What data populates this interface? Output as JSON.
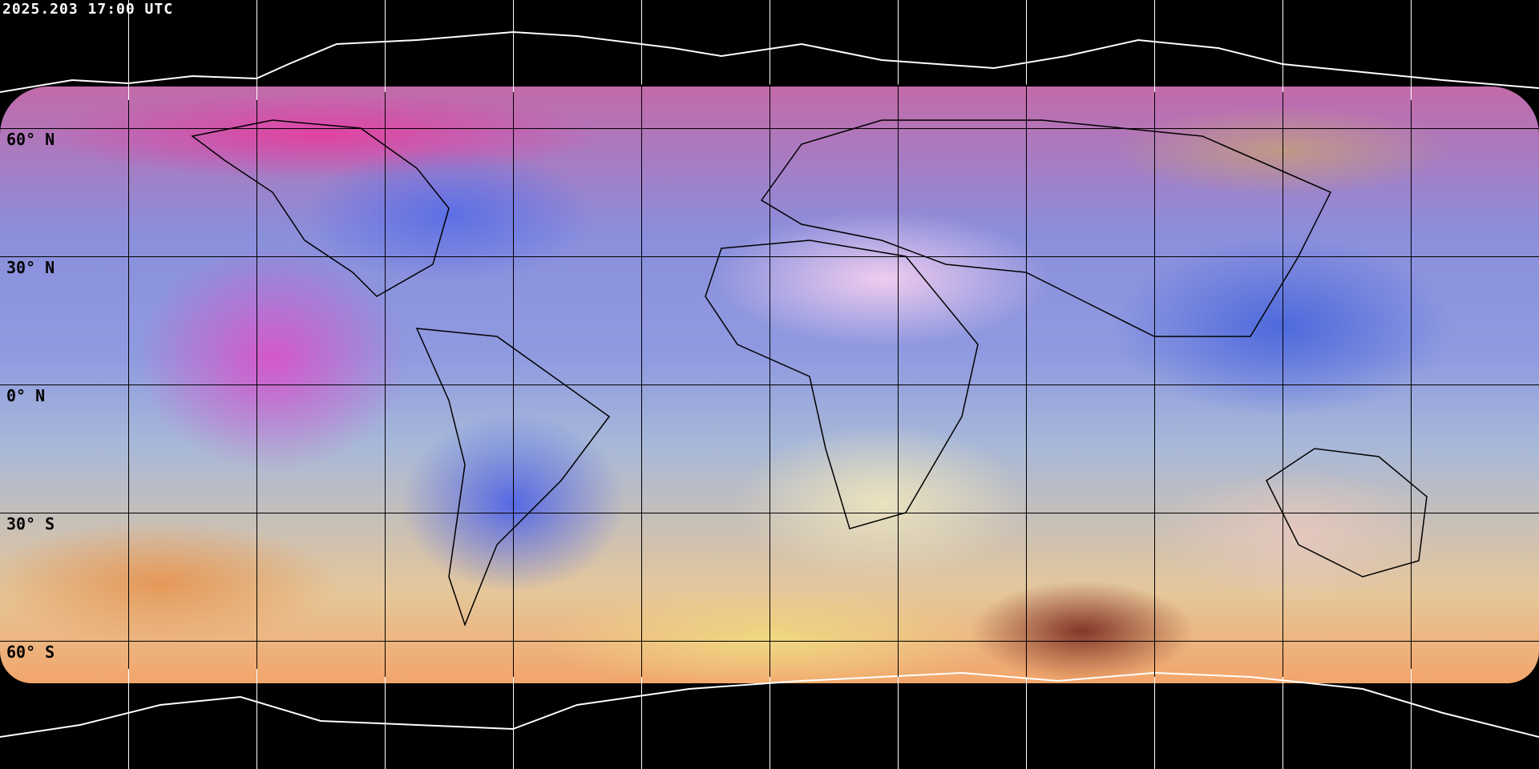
{
  "title": "2025.203 17:00 UTC",
  "latitude_labels": [
    "60° N",
    "30° N",
    "0° N",
    "30° S",
    "60° S"
  ],
  "colors": {
    "background": "#000000",
    "gridline_land": "#000000",
    "gridline_space": "#ffffff",
    "coastline_over_image": "#000000",
    "coastline_over_space": "#ffffff"
  }
}
